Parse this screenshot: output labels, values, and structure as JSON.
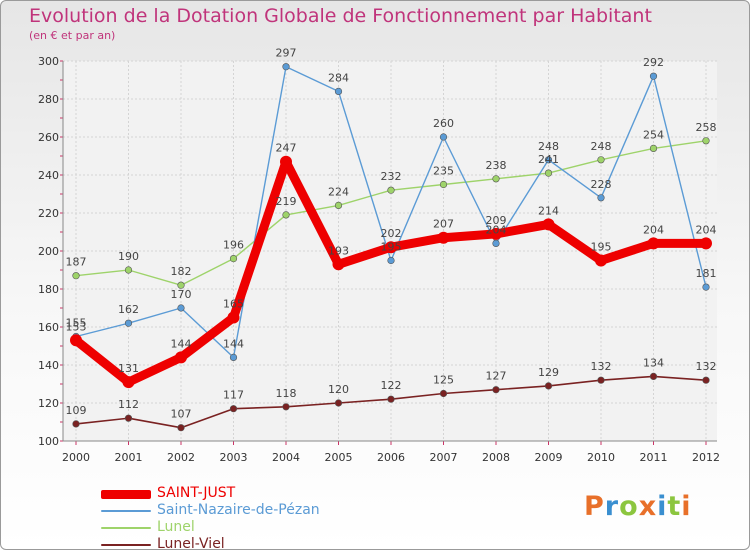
{
  "title": "Evolution de la Dotation Globale de Fonctionnement par Habitant",
  "subtitle": "(en € et par an)",
  "logo_text": "Proxiti",
  "logo_colors": [
    "#e8702a",
    "#3a8fd0",
    "#8cc63f",
    "#e8702a",
    "#3a8fd0",
    "#8cc63f",
    "#e8702a"
  ],
  "chart_data": {
    "type": "line",
    "title": "Evolution de la Dotation Globale de Fonctionnement par Habitant",
    "subtitle": "(en € et par an)",
    "x": [
      "2000",
      "2001",
      "2002",
      "2003",
      "2004",
      "2005",
      "2006",
      "2007",
      "2008",
      "2009",
      "2010",
      "2011",
      "2012"
    ],
    "ylim": [
      100,
      300
    ],
    "yticks": [
      100,
      120,
      140,
      160,
      180,
      200,
      220,
      240,
      260,
      280,
      300
    ],
    "grid": true,
    "legend_position": "bottom-left",
    "series": [
      {
        "name": "SAINT-JUST",
        "color": "#ee0000",
        "values": [
          153,
          131,
          144,
          165,
          247,
          193,
          202,
          207,
          209,
          214,
          195,
          204,
          204
        ]
      },
      {
        "name": "Saint-Nazaire-de-Pézan",
        "color": "#5b9bd5",
        "values": [
          155,
          162,
          170,
          144,
          297,
          284,
          195,
          260,
          204,
          248,
          228,
          292,
          181
        ]
      },
      {
        "name": "Lunel",
        "color": "#9ed36a",
        "values": [
          187,
          190,
          182,
          196,
          219,
          224,
          232,
          235,
          238,
          241,
          248,
          254,
          258
        ]
      },
      {
        "name": "Lunel-Viel",
        "color": "#7a2222",
        "values": [
          109,
          112,
          107,
          117,
          118,
          120,
          122,
          125,
          127,
          129,
          132,
          134,
          132
        ]
      }
    ]
  }
}
